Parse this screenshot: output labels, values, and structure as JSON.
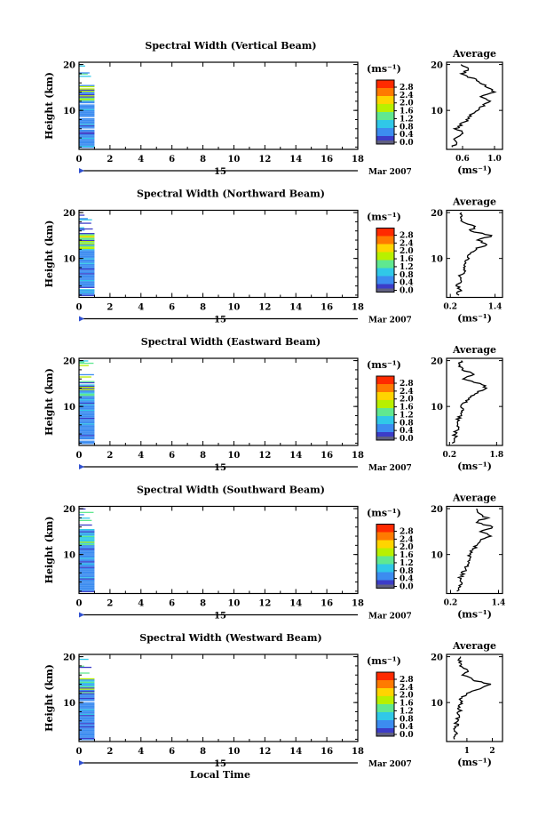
{
  "chart_data": [
    {
      "type": "heatmap",
      "title": "Spectral Width (Vertical Beam)",
      "ylabel": "Height (km)",
      "x_ticks": [
        "0",
        "2",
        "4",
        "6",
        "8",
        "10",
        "12",
        "14",
        "16",
        "18"
      ],
      "y_ticks": [
        "10",
        "20"
      ],
      "xlim": [
        0,
        18
      ],
      "ylim": [
        1.5,
        20.5
      ],
      "date_day": "15",
      "date_month": "Mar 2007",
      "colorbar_label": "(ms⁻¹)",
      "colorbar_ticks": [
        "2.8",
        "2.4",
        "2.0",
        "1.6",
        "1.2",
        "0.8",
        "0.4",
        "0.0"
      ],
      "colorbar_colors": [
        "#ff2a00",
        "#ff7a00",
        "#ffd400",
        "#b8f000",
        "#60e890",
        "#30c8e8",
        "#3c8cf0",
        "#3c3cc8"
      ],
      "data_time_range": [
        0,
        1.0
      ],
      "average": {
        "title": "Average",
        "xlabel": "(ms⁻¹)",
        "x_ticks": [
          "0.6",
          "1.0"
        ],
        "x_tick_values": [
          0.6,
          1.0
        ],
        "xlim": [
          0.4,
          1.1
        ],
        "y_ticks": [
          "10",
          "20"
        ],
        "profile": [
          [
            0.48,
            2
          ],
          [
            0.55,
            3
          ],
          [
            0.5,
            4
          ],
          [
            0.62,
            5
          ],
          [
            0.52,
            6
          ],
          [
            0.58,
            7
          ],
          [
            0.66,
            8
          ],
          [
            0.7,
            9
          ],
          [
            0.78,
            10
          ],
          [
            0.86,
            11
          ],
          [
            0.95,
            12
          ],
          [
            0.82,
            13
          ],
          [
            1.0,
            14
          ],
          [
            0.9,
            15
          ],
          [
            0.84,
            16
          ],
          [
            0.72,
            17
          ],
          [
            0.6,
            18
          ],
          [
            0.66,
            19
          ],
          [
            0.58,
            20
          ]
        ]
      }
    },
    {
      "type": "heatmap",
      "title": "Spectral Width (Northward Beam)",
      "ylabel": "Height (km)",
      "x_ticks": [
        "0",
        "2",
        "4",
        "6",
        "8",
        "10",
        "12",
        "14",
        "16",
        "18"
      ],
      "y_ticks": [
        "10",
        "20"
      ],
      "xlim": [
        0,
        18
      ],
      "ylim": [
        1.5,
        20.5
      ],
      "date_day": "15",
      "date_month": "Mar 2007",
      "colorbar_label": "(ms⁻¹)",
      "colorbar_ticks": [
        "2.8",
        "2.4",
        "2.0",
        "1.6",
        "1.2",
        "0.8",
        "0.4",
        "0.0"
      ],
      "colorbar_colors": [
        "#ff2a00",
        "#ff7a00",
        "#ffd400",
        "#b8f000",
        "#60e890",
        "#30c8e8",
        "#3c8cf0",
        "#3c3cc8"
      ],
      "data_time_range": [
        0,
        1.0
      ],
      "average": {
        "title": "Average",
        "xlabel": "(ms⁻¹)",
        "x_ticks": [
          "0.2",
          "1.4"
        ],
        "x_tick_values": [
          0.2,
          1.4
        ],
        "xlim": [
          0.1,
          1.6
        ],
        "y_ticks": [
          "10",
          "20"
        ],
        "profile": [
          [
            0.4,
            2
          ],
          [
            0.45,
            3
          ],
          [
            0.38,
            4
          ],
          [
            0.5,
            5
          ],
          [
            0.46,
            6
          ],
          [
            0.55,
            7
          ],
          [
            0.6,
            8
          ],
          [
            0.58,
            9
          ],
          [
            0.65,
            10
          ],
          [
            0.7,
            11
          ],
          [
            0.85,
            12
          ],
          [
            1.2,
            13
          ],
          [
            0.95,
            14
          ],
          [
            1.35,
            15
          ],
          [
            0.7,
            16
          ],
          [
            0.9,
            17
          ],
          [
            0.5,
            18
          ],
          [
            0.45,
            19
          ],
          [
            0.5,
            20
          ]
        ]
      }
    },
    {
      "type": "heatmap",
      "title": "Spectral Width (Eastward Beam)",
      "ylabel": "Height (km)",
      "x_ticks": [
        "0",
        "2",
        "4",
        "6",
        "8",
        "10",
        "12",
        "14",
        "16",
        "18"
      ],
      "y_ticks": [
        "10",
        "20"
      ],
      "xlim": [
        0,
        18
      ],
      "ylim": [
        1.5,
        20.5
      ],
      "date_day": "15",
      "date_month": "Mar 2007",
      "colorbar_label": "(ms⁻¹)",
      "colorbar_ticks": [
        "2.8",
        "2.4",
        "2.0",
        "1.6",
        "1.2",
        "0.8",
        "0.4",
        "0.0"
      ],
      "colorbar_colors": [
        "#ff2a00",
        "#ff7a00",
        "#ffd400",
        "#b8f000",
        "#60e890",
        "#30c8e8",
        "#3c8cf0",
        "#3c3cc8"
      ],
      "data_time_range": [
        0,
        1.0
      ],
      "average": {
        "title": "Average",
        "xlabel": "(ms⁻¹)",
        "x_ticks": [
          "0.2",
          "1.8"
        ],
        "x_tick_values": [
          0.2,
          1.8
        ],
        "xlim": [
          0.1,
          2.0
        ],
        "y_ticks": [
          "10",
          "20"
        ],
        "profile": [
          [
            0.35,
            2
          ],
          [
            0.4,
            3
          ],
          [
            0.38,
            4
          ],
          [
            0.45,
            5
          ],
          [
            0.5,
            6
          ],
          [
            0.48,
            7
          ],
          [
            0.55,
            8
          ],
          [
            0.6,
            9
          ],
          [
            0.62,
            10
          ],
          [
            0.75,
            11
          ],
          [
            0.9,
            12
          ],
          [
            1.1,
            13
          ],
          [
            1.5,
            14
          ],
          [
            1.2,
            15
          ],
          [
            0.6,
            16
          ],
          [
            1.0,
            17
          ],
          [
            0.7,
            18
          ],
          [
            0.55,
            19
          ],
          [
            0.6,
            20
          ]
        ]
      }
    },
    {
      "type": "heatmap",
      "title": "Spectral Width (Southward Beam)",
      "ylabel": "Height (km)",
      "x_ticks": [
        "0",
        "2",
        "4",
        "6",
        "8",
        "10",
        "12",
        "14",
        "16",
        "18"
      ],
      "y_ticks": [
        "10",
        "20"
      ],
      "xlim": [
        0,
        18
      ],
      "ylim": [
        1.5,
        20.5
      ],
      "date_day": "15",
      "date_month": "Mar 2007",
      "colorbar_label": "(ms⁻¹)",
      "colorbar_ticks": [
        "2.8",
        "2.4",
        "2.0",
        "1.6",
        "1.2",
        "0.8",
        "0.4",
        "0.0"
      ],
      "colorbar_colors": [
        "#ff2a00",
        "#ff7a00",
        "#ffd400",
        "#b8f000",
        "#60e890",
        "#30c8e8",
        "#3c8cf0",
        "#3c3cc8"
      ],
      "data_time_range": [
        0,
        1.0
      ],
      "average": {
        "title": "Average",
        "xlabel": "(ms⁻¹)",
        "x_ticks": [
          "0.2",
          "1.4"
        ],
        "x_tick_values": [
          0.2,
          1.4
        ],
        "xlim": [
          0.1,
          1.5
        ],
        "y_ticks": [
          "10",
          "20"
        ],
        "profile": [
          [
            0.4,
            2
          ],
          [
            0.42,
            3
          ],
          [
            0.5,
            4
          ],
          [
            0.45,
            5
          ],
          [
            0.52,
            6
          ],
          [
            0.58,
            7
          ],
          [
            0.6,
            8
          ],
          [
            0.65,
            9
          ],
          [
            0.7,
            10
          ],
          [
            0.75,
            11
          ],
          [
            0.85,
            12
          ],
          [
            0.9,
            13
          ],
          [
            1.2,
            14
          ],
          [
            0.95,
            15
          ],
          [
            1.3,
            16
          ],
          [
            0.8,
            17
          ],
          [
            1.1,
            18
          ],
          [
            0.9,
            19
          ],
          [
            0.85,
            20
          ]
        ]
      }
    },
    {
      "type": "heatmap",
      "title": "Spectral Width (Westward Beam)",
      "ylabel": "Height (km)",
      "x_ticks": [
        "0",
        "2",
        "4",
        "6",
        "8",
        "10",
        "12",
        "14",
        "16",
        "18"
      ],
      "y_ticks": [
        "10",
        "20"
      ],
      "xlim": [
        0,
        18
      ],
      "ylim": [
        1.5,
        20.5
      ],
      "date_day": "15",
      "date_month": "Mar 2007",
      "xlabel": "Local Time",
      "colorbar_label": "(ms⁻¹)",
      "colorbar_ticks": [
        "2.8",
        "2.4",
        "2.0",
        "1.6",
        "1.2",
        "0.8",
        "0.4",
        "0.0"
      ],
      "colorbar_colors": [
        "#ff2a00",
        "#ff7a00",
        "#ffd400",
        "#b8f000",
        "#60e890",
        "#30c8e8",
        "#3c8cf0",
        "#3c3cc8"
      ],
      "data_time_range": [
        0,
        1.0
      ],
      "average": {
        "title": "Average",
        "xlabel": "(ms⁻¹)",
        "x_ticks": [
          "1",
          "2"
        ],
        "x_tick_values": [
          1,
          2
        ],
        "xlim": [
          0.2,
          2.4
        ],
        "y_ticks": [
          "10",
          "20"
        ],
        "profile": [
          [
            0.5,
            2
          ],
          [
            0.55,
            3
          ],
          [
            0.52,
            4
          ],
          [
            0.6,
            5
          ],
          [
            0.58,
            6
          ],
          [
            0.65,
            7
          ],
          [
            0.7,
            8
          ],
          [
            0.72,
            9
          ],
          [
            0.75,
            10
          ],
          [
            0.8,
            11
          ],
          [
            0.95,
            12
          ],
          [
            1.6,
            13
          ],
          [
            1.9,
            14
          ],
          [
            1.2,
            15
          ],
          [
            0.9,
            16
          ],
          [
            1.0,
            17
          ],
          [
            0.8,
            18
          ],
          [
            0.7,
            19
          ],
          [
            0.75,
            20
          ]
        ]
      }
    }
  ]
}
